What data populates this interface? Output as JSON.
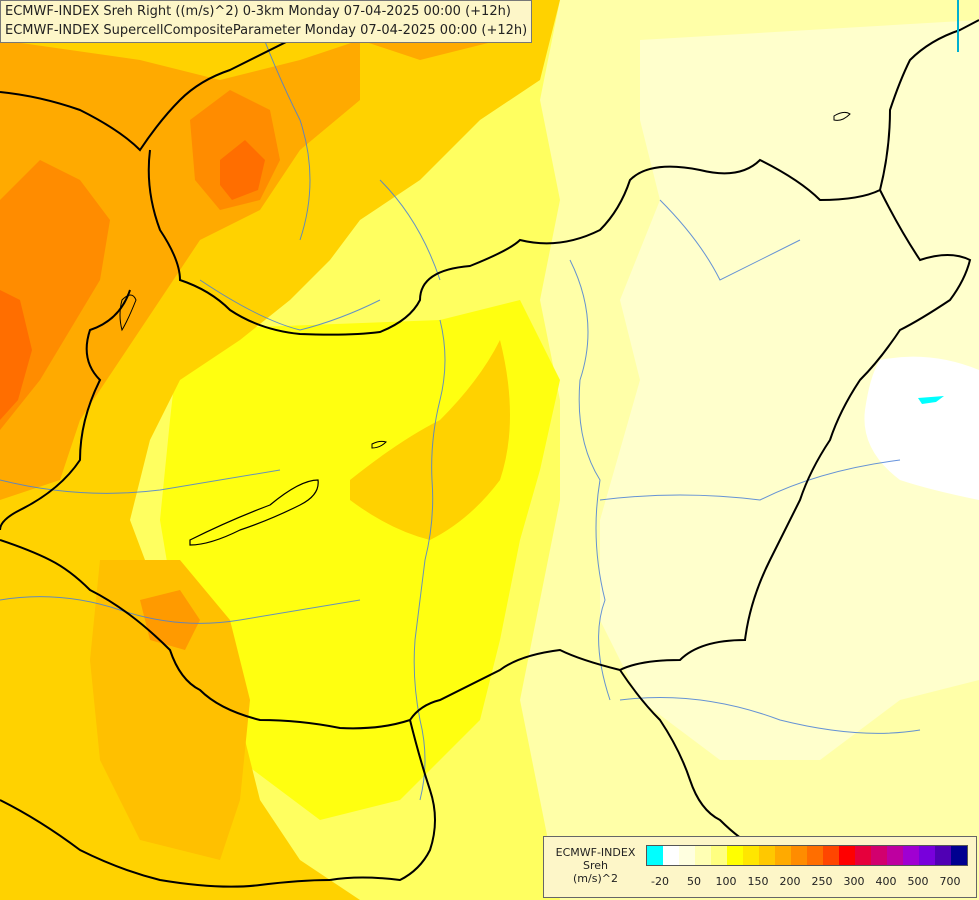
{
  "titles": {
    "line1": "ECMWF-INDEX Sreh Right ((m/s)^2) 0-3km Monday 07-04-2025 00:00 (+12h)",
    "line2": "ECMWF-INDEX SupercellCompositeParameter Monday 07-04-2025 00:00 (+12h)"
  },
  "legend": {
    "model": "ECMWF-INDEX",
    "variable": "Sreh",
    "unit": "(m/s)^2",
    "swatch_colors": [
      "#00ffff",
      "#ffffff",
      "#ffffe0",
      "#ffffb4",
      "#ffff80",
      "#ffff00",
      "#ffe600",
      "#ffc800",
      "#ffaa00",
      "#ff8c00",
      "#ff6e00",
      "#ff4600",
      "#ff0000",
      "#e6003c",
      "#d2006e",
      "#be00a0",
      "#a000d2",
      "#7800dc",
      "#5000b4",
      "#000090"
    ],
    "tick_labels": [
      "-20",
      "50",
      "100",
      "150",
      "200",
      "250",
      "300",
      "400",
      "500",
      "700"
    ]
  }
}
